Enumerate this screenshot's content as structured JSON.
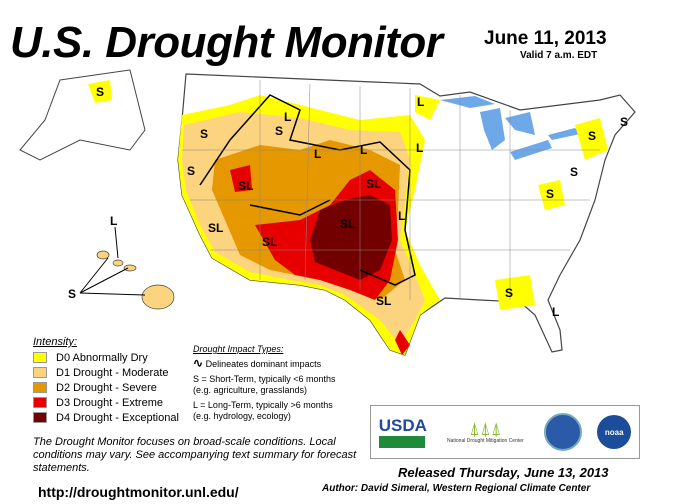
{
  "header": {
    "title": "U.S. Drought Monitor",
    "date": "June 11, 2013",
    "valid": "Valid 7 a.m. EDT"
  },
  "colors": {
    "D0": "#ffff00",
    "D1": "#fcd37f",
    "D2": "#e69800",
    "D3": "#e60000",
    "D4": "#730000",
    "water": "#6fa8e8",
    "state_line": "#888888"
  },
  "map_labels": {
    "S": "S",
    "L": "L",
    "SL": "SL"
  },
  "legend": {
    "heading": "Intensity:",
    "items": [
      {
        "label": "D0 Abnormally Dry",
        "color": "#ffff00"
      },
      {
        "label": "D1 Drought - Moderate",
        "color": "#fcd37f"
      },
      {
        "label": "D2 Drought - Severe",
        "color": "#e69800"
      },
      {
        "label": "D3 Drought - Extreme",
        "color": "#e60000"
      },
      {
        "label": "D4 Drought - Exceptional",
        "color": "#730000"
      }
    ]
  },
  "impact": {
    "heading": "Drought Impact Types:",
    "delineates": "Delineates dominant impacts",
    "short_term": "S = Short-Term, typically <6 months",
    "short_term_eg": "(e.g. agriculture, grasslands)",
    "long_term": "L = Long-Term, typically >6 months",
    "long_term_eg": "(e.g. hydrology, ecology)"
  },
  "note": "The Drought Monitor focuses on broad-scale conditions. Local conditions may vary. See accompanying text summary for forecast statements.",
  "url": "http://droughtmonitor.unl.edu/",
  "logos": {
    "usda": "USDA",
    "ndmc": "National Drought Mitigation Center",
    "noaa": "noaa"
  },
  "released": "Released Thursday, June 13, 2013",
  "author": "Author: David Simeral, Western Regional Climate Center"
}
